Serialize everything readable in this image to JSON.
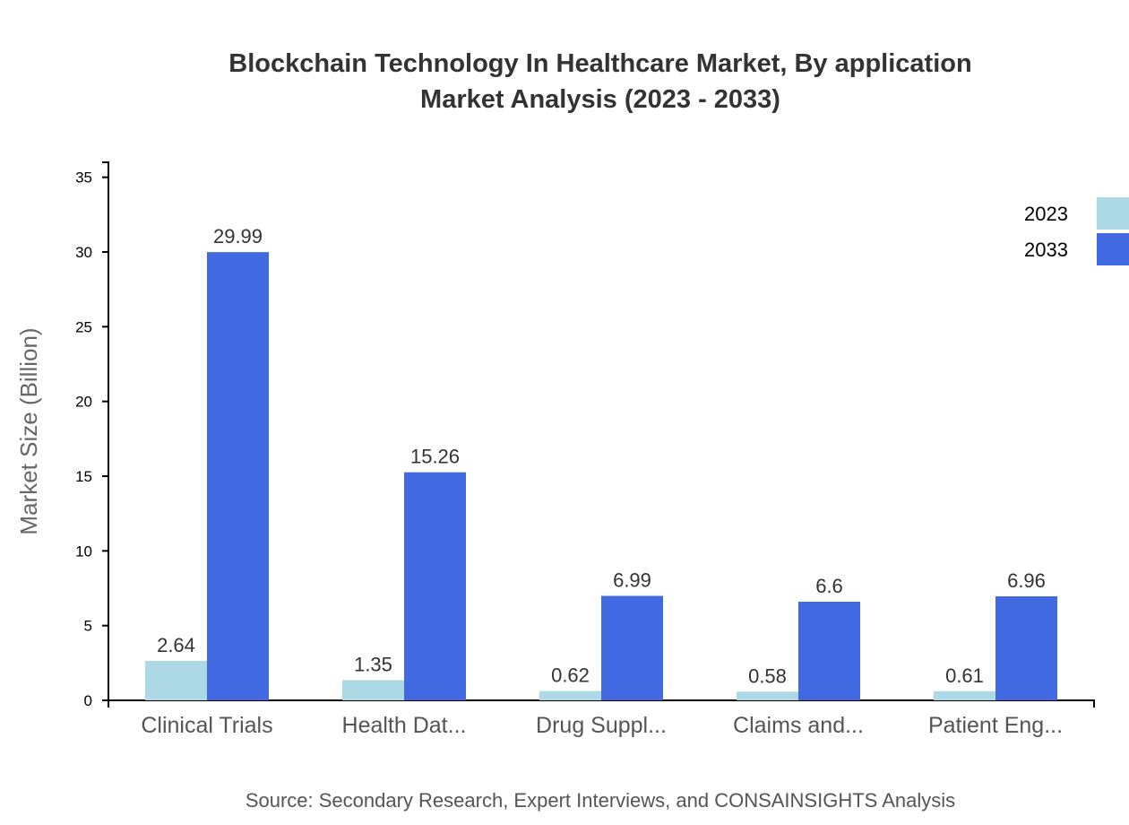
{
  "chart_data": {
    "type": "bar",
    "title": [
      "Blockchain Technology In Healthcare Market, By application",
      "Market Analysis (2023 - 2033)"
    ],
    "ylabel": "Market Size (Billion)",
    "xlabel": "",
    "categories": [
      "Clinical Trials",
      "Health Dat...",
      "Drug Suppl...",
      "Claims and...",
      "Patient Eng..."
    ],
    "series": [
      {
        "name": "2023",
        "color": "#add8e6",
        "values": [
          2.64,
          1.35,
          0.62,
          0.58,
          0.61
        ]
      },
      {
        "name": "2033",
        "color": "#4169e1",
        "values": [
          29.99,
          15.26,
          6.99,
          6.6,
          6.96
        ]
      }
    ],
    "yticks": [
      0,
      5,
      10,
      15,
      20,
      25,
      30,
      35
    ],
    "ylim": [
      0,
      36
    ],
    "grid": false,
    "legend_position": "top-right",
    "source": "Source: Secondary Research, Expert Interviews, and CONSAINSIGHTS Analysis"
  }
}
